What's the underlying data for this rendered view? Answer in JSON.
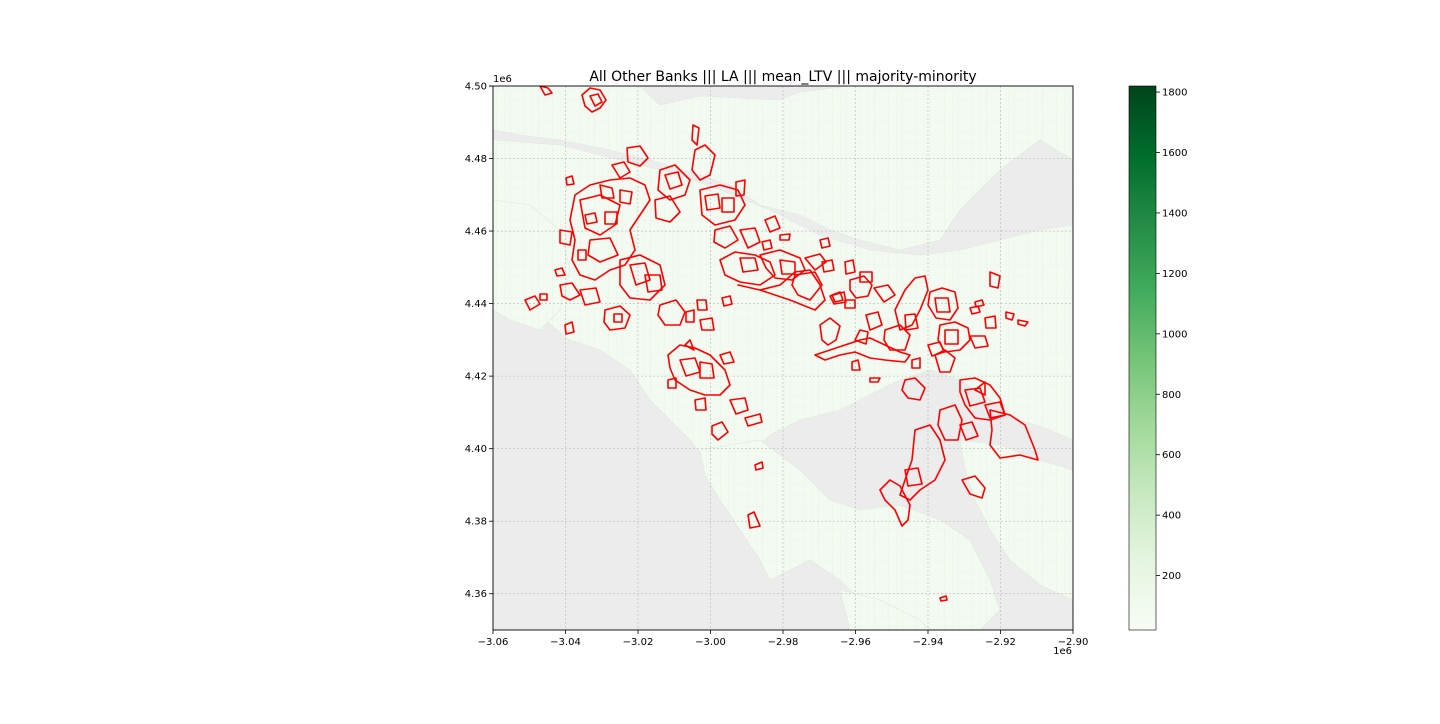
{
  "title": "All Other Banks ||| LA ||| mean_LTV ||| majority-minority",
  "map": {
    "x_ticks": [
      "−3.06",
      "−3.04",
      "−3.02",
      "−3.00",
      "−2.98",
      "−2.96",
      "−2.94",
      "−2.92",
      "−2.90"
    ],
    "y_ticks": [
      "4.36",
      "4.38",
      "4.40",
      "4.42",
      "4.44",
      "4.46",
      "4.48",
      "4.50"
    ],
    "x_offset_label": "1e6",
    "y_offset_label": "1e6",
    "x_range": [
      -3.06,
      -2.9
    ],
    "y_range": [
      4.35,
      4.5
    ],
    "grid": true,
    "background_color": "#ececec",
    "tract_fill_color": "#f3faf1",
    "highlight_outline_color": "#ff0000"
  },
  "colorbar": {
    "ticks": [
      "200",
      "400",
      "600",
      "800",
      "1000",
      "1200",
      "1400",
      "1600",
      "1800"
    ],
    "tick_values": [
      200,
      400,
      600,
      800,
      1000,
      1200,
      1400,
      1600,
      1800
    ],
    "range": [
      20,
      1820
    ],
    "colormap": "Greens",
    "colors": [
      "#f7fcf5",
      "#e5f5e0",
      "#c7e9c0",
      "#a1d99b",
      "#74c476",
      "#41ab5d",
      "#238b45",
      "#006d2c",
      "#00441b"
    ]
  }
}
